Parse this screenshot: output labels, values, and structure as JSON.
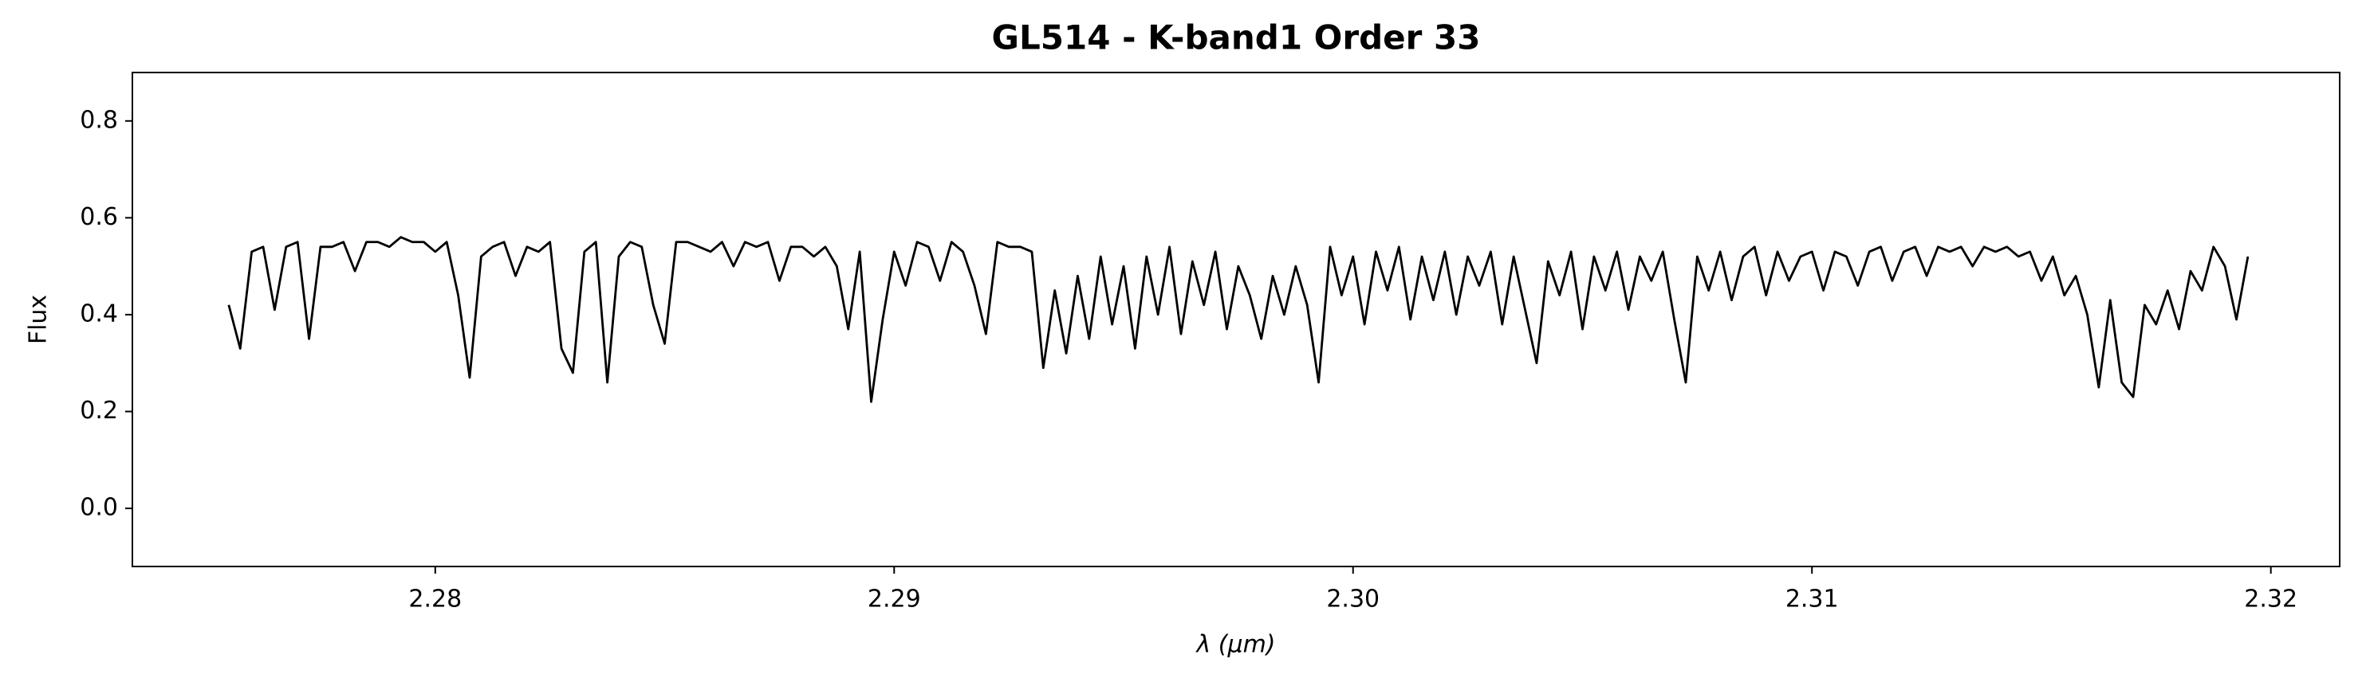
{
  "chart_data": {
    "type": "line",
    "title": "GL514 - K-band1 Order 33",
    "x_label": "λ (μm)",
    "y_label": "Flux",
    "xlim": [
      2.2734,
      2.3215
    ],
    "ylim": [
      -0.12,
      0.9
    ],
    "xticks": [
      2.28,
      2.29,
      {
        "value": 2.3,
        "label": "2.30"
      },
      2.31,
      2.32
    ],
    "yticks": [
      {
        "value": 0,
        "label": "0.0"
      },
      0.2,
      0.4,
      0.6,
      0.8
    ],
    "x": [
      2.2755,
      2.27575,
      2.276,
      2.27625,
      2.2765,
      2.27675,
      2.277,
      2.27725,
      2.2775,
      2.27775,
      2.278,
      2.27825,
      2.2785,
      2.27875,
      2.279,
      2.27925,
      2.2795,
      2.27975,
      2.28,
      2.28025,
      2.2805,
      2.28075,
      2.281,
      2.28125,
      2.2815,
      2.28175,
      2.282,
      2.28225,
      2.2825,
      2.28275,
      2.283,
      2.28325,
      2.2835,
      2.28375,
      2.284,
      2.28425,
      2.2845,
      2.28475,
      2.285,
      2.28525,
      2.2855,
      2.28575,
      2.286,
      2.28625,
      2.2865,
      2.28675,
      2.287,
      2.28725,
      2.2875,
      2.28775,
      2.288,
      2.28825,
      2.2885,
      2.28875,
      2.289,
      2.28925,
      2.2895,
      2.28975,
      2.29,
      2.29025,
      2.2905,
      2.29075,
      2.291,
      2.29125,
      2.2915,
      2.29175,
      2.292,
      2.29225,
      2.2925,
      2.29275,
      2.293,
      2.29325,
      2.2935,
      2.29375,
      2.294,
      2.29425,
      2.2945,
      2.29475,
      2.295,
      2.29525,
      2.2955,
      2.29575,
      2.296,
      2.29625,
      2.2965,
      2.29675,
      2.297,
      2.29725,
      2.2975,
      2.29775,
      2.298,
      2.29825,
      2.2985,
      2.29875,
      2.299,
      2.29925,
      2.2995,
      2.29975,
      2.3,
      2.30025,
      2.3005,
      2.30075,
      2.301,
      2.30125,
      2.3015,
      2.30175,
      2.302,
      2.30225,
      2.3025,
      2.30275,
      2.303,
      2.30325,
      2.3035,
      2.30375,
      2.304,
      2.30425,
      2.3045,
      2.30475,
      2.305,
      2.30525,
      2.3055,
      2.30575,
      2.306,
      2.30625,
      2.3065,
      2.30675,
      2.307,
      2.30725,
      2.3075,
      2.30775,
      2.308,
      2.30825,
      2.3085,
      2.30875,
      2.309,
      2.30925,
      2.3095,
      2.30975,
      2.31,
      2.31025,
      2.3105,
      2.31075,
      2.311,
      2.31125,
      2.3115,
      2.31175,
      2.312,
      2.31225,
      2.3125,
      2.31275,
      2.313,
      2.31325,
      2.3135,
      2.31375,
      2.314,
      2.31425,
      2.3145,
      2.31475,
      2.315,
      2.31525,
      2.3155,
      2.31575,
      2.316,
      2.31625,
      2.3165,
      2.31675,
      2.317,
      2.31725,
      2.3175,
      2.31775,
      2.318,
      2.31825,
      2.3185,
      2.31875,
      2.319,
      2.31925,
      2.3195
    ],
    "series": [
      {
        "color": "#000000",
        "values": [
          0.42,
          0.33,
          0.53,
          0.54,
          0.41,
          0.54,
          0.55,
          0.35,
          0.54,
          0.54,
          0.55,
          0.49,
          0.55,
          0.55,
          0.54,
          0.56,
          0.55,
          0.55,
          0.53,
          0.55,
          0.44,
          0.27,
          0.52,
          0.54,
          0.55,
          0.48,
          0.54,
          0.53,
          0.55,
          0.33,
          0.28,
          0.53,
          0.55,
          0.26,
          0.52,
          0.55,
          0.54,
          0.42,
          0.34,
          0.55,
          0.55,
          0.54,
          0.53,
          0.55,
          0.5,
          0.55,
          0.54,
          0.55,
          0.47,
          0.54,
          0.54,
          0.52,
          0.54,
          0.5,
          0.37,
          0.53,
          0.22,
          0.39,
          0.53,
          0.46,
          0.55,
          0.54,
          0.47,
          0.55,
          0.53,
          0.46,
          0.36,
          0.55,
          0.54,
          0.54,
          0.53,
          0.29,
          0.45,
          0.32,
          0.48,
          0.35,
          0.52,
          0.38,
          0.5,
          0.33,
          0.52,
          0.4,
          0.54,
          0.36,
          0.51,
          0.42,
          0.53,
          0.37,
          0.5,
          0.44,
          0.35,
          0.48,
          0.4,
          0.5,
          0.42,
          0.26,
          0.54,
          0.44,
          0.52,
          0.38,
          0.53,
          0.45,
          0.54,
          0.39,
          0.52,
          0.43,
          0.53,
          0.4,
          0.52,
          0.46,
          0.53,
          0.38,
          0.52,
          0.41,
          0.3,
          0.51,
          0.44,
          0.53,
          0.37,
          0.52,
          0.45,
          0.53,
          0.41,
          0.52,
          0.47,
          0.53,
          0.39,
          0.26,
          0.52,
          0.45,
          0.53,
          0.43,
          0.52,
          0.54,
          0.44,
          0.53,
          0.47,
          0.52,
          0.53,
          0.45,
          0.53,
          0.52,
          0.46,
          0.53,
          0.54,
          0.47,
          0.53,
          0.54,
          0.48,
          0.54,
          0.53,
          0.54,
          0.5,
          0.54,
          0.53,
          0.54,
          0.52,
          0.53,
          0.47,
          0.52,
          0.44,
          0.48,
          0.4,
          0.25,
          0.43,
          0.26,
          0.23,
          0.42,
          0.38,
          0.45,
          0.37,
          0.49,
          0.45,
          0.54,
          0.5,
          0.39,
          0.52
        ]
      }
    ]
  }
}
